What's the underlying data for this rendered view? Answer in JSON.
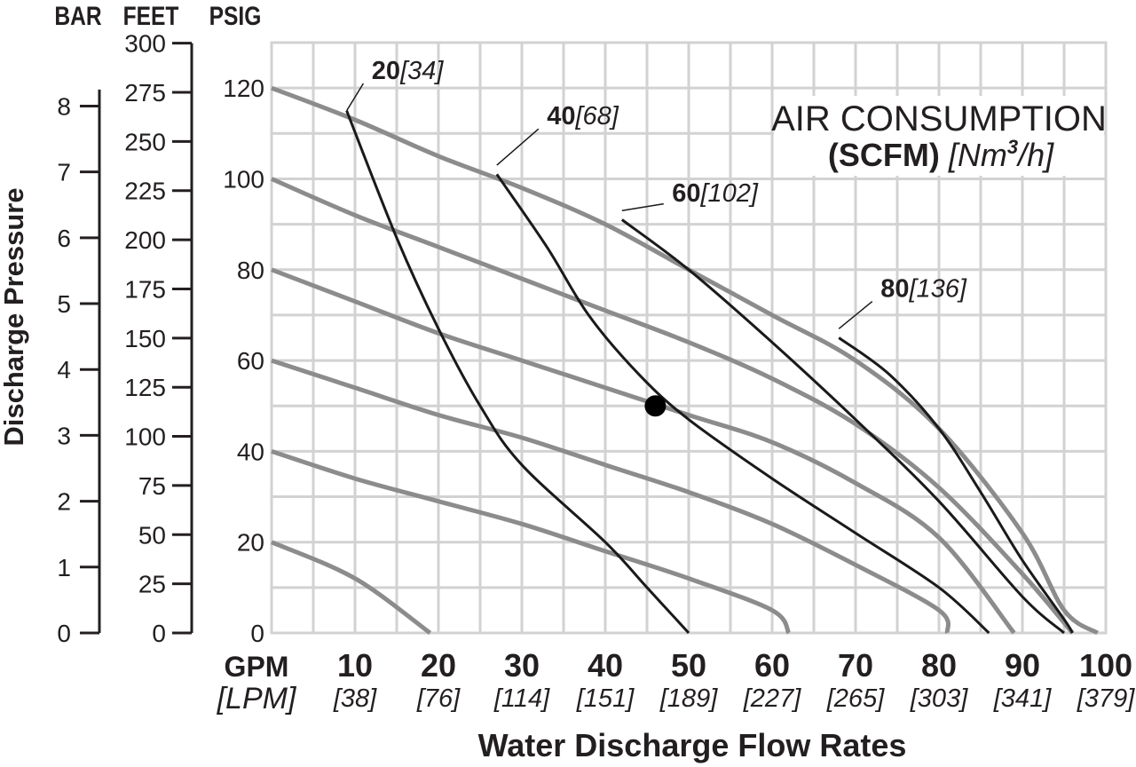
{
  "chart_data": {
    "type": "line",
    "header_units": {
      "bar": "BAR",
      "feet": "FEET",
      "psig": "PSIG"
    },
    "y_title": "Discharge Pressure",
    "x_title": "Water Discharge Flow Rates",
    "x_unit_primary": "GPM",
    "x_unit_secondary": "[LPM]",
    "legend_title_line1": "AIR CONSUMPTION",
    "legend_title_bold": "(SCFM)",
    "legend_title_italic_a": "[Nm",
    "legend_title_sup": "3",
    "legend_title_italic_b": "/h]",
    "xlim": [
      0,
      100
    ],
    "ylim_psig": [
      0,
      130
    ],
    "x_ticks": [
      {
        "gpm": "10",
        "lpm": "[38]"
      },
      {
        "gpm": "20",
        "lpm": "[76]"
      },
      {
        "gpm": "30",
        "lpm": "[114]"
      },
      {
        "gpm": "40",
        "lpm": "[151]"
      },
      {
        "gpm": "50",
        "lpm": "[189]"
      },
      {
        "gpm": "60",
        "lpm": "[227]"
      },
      {
        "gpm": "70",
        "lpm": "[265]"
      },
      {
        "gpm": "80",
        "lpm": "[303]"
      },
      {
        "gpm": "90",
        "lpm": "[341]"
      },
      {
        "gpm": "100",
        "lpm": "[379]"
      }
    ],
    "psig_ticks": [
      "0",
      "20",
      "40",
      "60",
      "80",
      "100",
      "120"
    ],
    "feet_ticks": [
      "0",
      "25",
      "50",
      "75",
      "100",
      "125",
      "150",
      "175",
      "200",
      "225",
      "250",
      "275",
      "300"
    ],
    "bar_ticks": [
      "0",
      "1",
      "2",
      "3",
      "4",
      "5",
      "6",
      "7",
      "8"
    ],
    "performance_curves_psig": [
      {
        "points": [
          [
            0,
            120
          ],
          [
            10,
            113
          ],
          [
            20,
            105
          ],
          [
            30,
            98
          ],
          [
            40,
            90
          ],
          [
            50,
            80
          ],
          [
            60,
            70
          ],
          [
            70,
            60
          ],
          [
            80,
            45
          ],
          [
            90,
            22
          ],
          [
            95,
            5
          ],
          [
            99,
            0
          ]
        ]
      },
      {
        "points": [
          [
            0,
            100
          ],
          [
            10,
            92
          ],
          [
            20,
            85
          ],
          [
            30,
            78
          ],
          [
            40,
            71
          ],
          [
            50,
            64
          ],
          [
            60,
            56
          ],
          [
            70,
            46
          ],
          [
            80,
            32
          ],
          [
            90,
            13
          ],
          [
            96,
            0
          ]
        ]
      },
      {
        "points": [
          [
            0,
            80
          ],
          [
            10,
            73
          ],
          [
            20,
            66
          ],
          [
            30,
            60
          ],
          [
            40,
            54
          ],
          [
            50,
            48
          ],
          [
            60,
            42
          ],
          [
            70,
            33
          ],
          [
            80,
            21
          ],
          [
            89,
            0
          ]
        ]
      },
      {
        "points": [
          [
            0,
            60
          ],
          [
            10,
            54
          ],
          [
            20,
            48
          ],
          [
            30,
            43
          ],
          [
            40,
            37
          ],
          [
            50,
            31
          ],
          [
            60,
            24
          ],
          [
            70,
            15
          ],
          [
            80,
            5
          ],
          [
            81,
            0
          ]
        ]
      },
      {
        "points": [
          [
            0,
            40
          ],
          [
            10,
            34
          ],
          [
            20,
            29
          ],
          [
            30,
            24
          ],
          [
            40,
            18
          ],
          [
            50,
            12
          ],
          [
            60,
            5
          ],
          [
            62,
            0
          ]
        ]
      },
      {
        "points": [
          [
            0,
            20
          ],
          [
            10,
            12
          ],
          [
            19,
            0
          ]
        ]
      }
    ],
    "air_consumption_curves_psig": [
      {
        "label_scfm": "20",
        "label_nm3h": "[34]",
        "points": [
          [
            9,
            115
          ],
          [
            15,
            87
          ],
          [
            20,
            67
          ],
          [
            25,
            50
          ],
          [
            30,
            37
          ],
          [
            40,
            20
          ],
          [
            45,
            10
          ],
          [
            50,
            0
          ]
        ]
      },
      {
        "label_scfm": "40",
        "label_nm3h": "[68]",
        "points": [
          [
            27,
            101
          ],
          [
            33,
            85
          ],
          [
            38,
            70
          ],
          [
            44,
            57
          ],
          [
            50,
            47
          ],
          [
            60,
            34
          ],
          [
            70,
            22
          ],
          [
            80,
            10
          ],
          [
            86,
            0
          ]
        ]
      },
      {
        "label_scfm": "60",
        "label_nm3h": "[102]",
        "points": [
          [
            42,
            91
          ],
          [
            50,
            80
          ],
          [
            60,
            64
          ],
          [
            70,
            47
          ],
          [
            80,
            29
          ],
          [
            90,
            8
          ],
          [
            95,
            0
          ]
        ]
      },
      {
        "label_scfm": "80",
        "label_nm3h": "[136]",
        "points": [
          [
            68,
            65
          ],
          [
            74,
            57
          ],
          [
            80,
            45
          ],
          [
            85,
            31
          ],
          [
            90,
            16
          ],
          [
            95,
            3
          ],
          [
            96,
            0
          ]
        ]
      }
    ],
    "operating_point": {
      "gpm": 46,
      "psig": 50
    },
    "grid": true
  }
}
